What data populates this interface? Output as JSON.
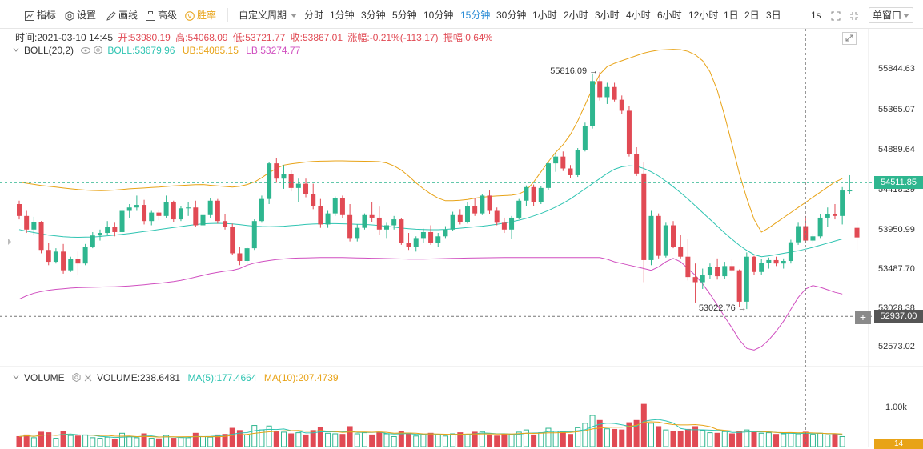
{
  "toolbar": {
    "left_tools": [
      {
        "label": "指标",
        "icon": "indicator-icon"
      },
      {
        "label": "设置",
        "icon": "settings-icon"
      },
      {
        "label": "画线",
        "icon": "draw-line-icon"
      },
      {
        "label": "高级",
        "icon": "advanced-icon"
      },
      {
        "label": "胜率",
        "icon": "win-rate-icon"
      }
    ],
    "custom_period_label": "自定义周期",
    "intervals": [
      "分时",
      "1分钟",
      "3分钟",
      "5分钟",
      "10分钟",
      "15分钟",
      "30分钟",
      "1小时",
      "2小时",
      "3小时",
      "4小时",
      "6小时",
      "12小时",
      "1日",
      "2日",
      "3日"
    ],
    "active_interval": "15分钟",
    "refresh_label": "1s",
    "window_mode": "单窗口",
    "vip_color": "#e8a317",
    "active_color": "#2b8cd6"
  },
  "ohlc_info": {
    "time": "时间:2021-03-10 14:45",
    "open": "开:53980.19",
    "high": "高:54068.09",
    "low": "低:53721.77",
    "close": "收:53867.01",
    "change": "涨幅:-0.21%(-113.17)",
    "amplitude": "振幅:0.64%"
  },
  "boll_legend": {
    "name": "BOLL(20,2)",
    "boll": "BOLL:53679.96",
    "ub": "UB:54085.15",
    "lb": "LB:53274.77",
    "boll_color": "#2fc4b2",
    "ub_color": "#e8a317",
    "lb_color": "#d04fc0"
  },
  "price_axis": {
    "ticks": [
      55844.63,
      55365.07,
      54889.64,
      54418.29,
      53950.99,
      53487.7,
      53028.38,
      52573.02
    ],
    "tick_labels": [
      "55844.63",
      "55365.07",
      "54889.64",
      "54418.29",
      "53950.99",
      "53487.70",
      "53028.38",
      "52573.02"
    ],
    "current_price": "54511.85",
    "crosshair_price": "52937.00",
    "current_price_color": "#2eb68f",
    "crosshair_color": "#555555"
  },
  "annotations": {
    "high": "55816.09",
    "low": "53022.76"
  },
  "volume_legend": {
    "name": "VOLUME",
    "volume": "VOLUME:238.6481",
    "ma5": "MA(5):177.4664",
    "ma10": "MA(10):207.4739",
    "ma5_color": "#2fc4b2",
    "ma10_color": "#e8a317"
  },
  "volume_axis": {
    "tick": "1.00k",
    "tag": "14"
  },
  "colors": {
    "up": "#2eb68f",
    "down": "#e14a54"
  },
  "chart_data": {
    "type": "candlestick",
    "interval": "15分钟",
    "last_bar": {
      "time": "2021-03-10 14:45",
      "open": 53980.19,
      "high": 54068.09,
      "low": 53721.77,
      "close": 53867.01
    },
    "candles": [
      [
        54260,
        54300,
        54080,
        54120
      ],
      [
        54120,
        54180,
        53920,
        53960
      ],
      [
        53960,
        54110,
        53900,
        54050
      ],
      [
        54050,
        54060,
        53680,
        53720
      ],
      [
        53720,
        53800,
        53540,
        53580
      ],
      [
        53580,
        53740,
        53560,
        53700
      ],
      [
        53700,
        53790,
        53440,
        53480
      ],
      [
        53480,
        53640,
        53460,
        53610
      ],
      [
        53610,
        53700,
        53420,
        53560
      ],
      [
        53560,
        53790,
        53540,
        53760
      ],
      [
        53760,
        53930,
        53740,
        53890
      ],
      [
        53890,
        53960,
        53830,
        53920
      ],
      [
        53920,
        54060,
        53900,
        53990
      ],
      [
        53990,
        54040,
        53880,
        53930
      ],
      [
        53930,
        54210,
        53900,
        54180
      ],
      [
        54180,
        54260,
        54100,
        54220
      ],
      [
        54220,
        54360,
        54180,
        54250
      ],
      [
        54250,
        54310,
        54020,
        54060
      ],
      [
        54060,
        54180,
        54010,
        54160
      ],
      [
        54160,
        54190,
        54070,
        54120
      ],
      [
        54120,
        54360,
        54100,
        54280
      ],
      [
        54280,
        54300,
        54050,
        54080
      ],
      [
        54080,
        54240,
        54060,
        54210
      ],
      [
        54210,
        54280,
        54120,
        54220
      ],
      [
        54220,
        54300,
        53990,
        54010
      ],
      [
        54010,
        54150,
        53960,
        54130
      ],
      [
        54130,
        54330,
        54090,
        54300
      ],
      [
        54300,
        54320,
        54030,
        54060
      ],
      [
        54060,
        54140,
        53960,
        53990
      ],
      [
        53990,
        54030,
        53660,
        53680
      ],
      [
        53680,
        53760,
        53540,
        53590
      ],
      [
        53590,
        53760,
        53560,
        53740
      ],
      [
        53740,
        54080,
        53720,
        54060
      ],
      [
        54060,
        54360,
        54040,
        54320
      ],
      [
        54320,
        54760,
        54260,
        54740
      ],
      [
        54740,
        54800,
        54510,
        54560
      ],
      [
        54560,
        54720,
        54440,
        54610
      ],
      [
        54610,
        54660,
        54410,
        54450
      ],
      [
        54450,
        54560,
        54280,
        54500
      ],
      [
        54500,
        54560,
        54340,
        54380
      ],
      [
        54380,
        54500,
        54200,
        54240
      ],
      [
        54240,
        54320,
        53980,
        54020
      ],
      [
        54020,
        54180,
        53980,
        54150
      ],
      [
        54150,
        54350,
        54120,
        54330
      ],
      [
        54330,
        54360,
        54090,
        54130
      ],
      [
        54130,
        54260,
        53820,
        53860
      ],
      [
        53860,
        54020,
        53820,
        53980
      ],
      [
        53980,
        54150,
        53960,
        54130
      ],
      [
        54130,
        54280,
        54050,
        54100
      ],
      [
        54100,
        54230,
        53900,
        53960
      ],
      [
        53960,
        54040,
        53860,
        54010
      ],
      [
        54010,
        54120,
        53960,
        54080
      ],
      [
        54080,
        54090,
        53780,
        53800
      ],
      [
        53800,
        53920,
        53720,
        53760
      ],
      [
        53760,
        53880,
        53700,
        53860
      ],
      [
        53860,
        53970,
        53800,
        53930
      ],
      [
        53930,
        54010,
        53780,
        53800
      ],
      [
        53800,
        53920,
        53760,
        53880
      ],
      [
        53880,
        54000,
        53860,
        53960
      ],
      [
        53960,
        54170,
        53940,
        54130
      ],
      [
        54130,
        54200,
        54020,
        54050
      ],
      [
        54050,
        54280,
        54030,
        54240
      ],
      [
        54240,
        54330,
        54120,
        54150
      ],
      [
        54150,
        54380,
        54130,
        54360
      ],
      [
        54360,
        54420,
        54140,
        54180
      ],
      [
        54180,
        54220,
        54010,
        54040
      ],
      [
        54040,
        54100,
        53920,
        53960
      ],
      [
        53960,
        54120,
        53850,
        54100
      ],
      [
        54100,
        54320,
        54080,
        54300
      ],
      [
        54300,
        54480,
        54240,
        54460
      ],
      [
        54460,
        54490,
        54240,
        54280
      ],
      [
        54280,
        54470,
        54260,
        54450
      ],
      [
        54450,
        54760,
        54430,
        54740
      ],
      [
        54740,
        54860,
        54640,
        54820
      ],
      [
        54820,
        54880,
        54650,
        54680
      ],
      [
        54680,
        54720,
        54570,
        54600
      ],
      [
        54600,
        54920,
        54580,
        54900
      ],
      [
        54900,
        55220,
        54880,
        55180
      ],
      [
        55180,
        55800,
        55150,
        55710
      ],
      [
        55710,
        55816,
        55480,
        55520
      ],
      [
        55520,
        55690,
        55440,
        55640
      ],
      [
        55640,
        55690,
        55470,
        55490
      ],
      [
        55490,
        55540,
        55320,
        55360
      ],
      [
        55360,
        55420,
        54820,
        54850
      ],
      [
        54850,
        54930,
        54590,
        54620
      ],
      [
        54620,
        54760,
        53340,
        53600
      ],
      [
        53600,
        54180,
        53540,
        54120
      ],
      [
        54120,
        54150,
        53620,
        53650
      ],
      [
        53650,
        54040,
        53630,
        54010
      ],
      [
        54010,
        54060,
        53740,
        53760
      ],
      [
        53760,
        53900,
        53620,
        53640
      ],
      [
        53640,
        53850,
        53360,
        53400
      ],
      [
        53400,
        53560,
        53100,
        53340
      ],
      [
        53340,
        53500,
        53260,
        53420
      ],
      [
        53420,
        53560,
        53380,
        53520
      ],
      [
        53520,
        53620,
        53370,
        53410
      ],
      [
        53410,
        53580,
        53380,
        53530
      ],
      [
        53530,
        53610,
        53460,
        53480
      ],
      [
        53480,
        53490,
        53050,
        53110
      ],
      [
        53110,
        53690,
        53022.76,
        53640
      ],
      [
        53640,
        53650,
        53420,
        53460
      ],
      [
        53460,
        53610,
        53430,
        53570
      ],
      [
        53570,
        53630,
        53500,
        53600
      ],
      [
        53600,
        53640,
        53530,
        53560
      ],
      [
        53560,
        53620,
        53500,
        53590
      ],
      [
        53590,
        53840,
        53560,
        53810
      ],
      [
        53810,
        54040,
        53780,
        54000
      ],
      [
        54000,
        54120,
        53800,
        53830
      ],
      [
        53830,
        53910,
        53800,
        53880
      ],
      [
        53880,
        54140,
        53860,
        54100
      ],
      [
        54100,
        54220,
        53990,
        54140
      ],
      [
        54140,
        54260,
        54080,
        54120
      ],
      [
        54120,
        54460,
        54020,
        54420
      ],
      [
        54420,
        54600,
        54380,
        54420
      ],
      [
        53980.19,
        54068.09,
        53721.77,
        53867.01
      ]
    ],
    "boll_upper": [
      54520,
      54505,
      54492,
      54480,
      54470,
      54460,
      54450,
      54440,
      54432,
      54425,
      54420,
      54418,
      54420,
      54425,
      54432,
      54440,
      54445,
      54450,
      54455,
      54460,
      54468,
      54475,
      54480,
      54485,
      54488,
      54490,
      54482,
      54475,
      54468,
      54460,
      54470,
      54490,
      54520,
      54570,
      54630,
      54680,
      54720,
      54735,
      54745,
      54755,
      54762,
      54766,
      54768,
      54770,
      54770,
      54768,
      54766,
      54765,
      54764,
      54760,
      54745,
      54710,
      54660,
      54590,
      54510,
      54440,
      54380,
      54330,
      54300,
      54300,
      54305,
      54315,
      54330,
      54340,
      54350,
      54355,
      54360,
      54365,
      54380,
      54420,
      54520,
      54640,
      54760,
      54870,
      54960,
      55080,
      55240,
      55430,
      55620,
      55790,
      55880,
      55920,
      55950,
      55980,
      56010,
      56040,
      56060,
      56075,
      56080,
      56085,
      56080,
      56060,
      56020,
      55950,
      55820,
      55600,
      55300,
      54960,
      54620,
      54330,
      54080,
      53930,
      53980,
      54040,
      54100,
      54160,
      54220,
      54280,
      54340,
      54400,
      54460,
      54520,
      54560
    ],
    "boll_mid": [
      53960,
      53940,
      53925,
      53910,
      53895,
      53885,
      53875,
      53870,
      53868,
      53870,
      53872,
      53878,
      53886,
      53894,
      53904,
      53914,
      53925,
      53936,
      53948,
      53960,
      53972,
      53984,
      53996,
      54008,
      54018,
      54028,
      54032,
      54034,
      54032,
      54026,
      54018,
      54008,
      54000,
      53996,
      53994,
      53996,
      54000,
      54006,
      54012,
      54020,
      54025,
      54028,
      54030,
      54030,
      54028,
      54025,
      54022,
      54020,
      54015,
      54008,
      53998,
      53988,
      53978,
      53970,
      53964,
      53960,
      53958,
      53958,
      53962,
      53968,
      53976,
      53984,
      53992,
      54000,
      54010,
      54022,
      54036,
      54052,
      54070,
      54092,
      54120,
      54150,
      54185,
      54225,
      54270,
      54320,
      54380,
      54440,
      54500,
      54560,
      54620,
      54670,
      54700,
      54712,
      54705,
      54680,
      54640,
      54590,
      54530,
      54465,
      54395,
      54320,
      54240,
      54160,
      54080,
      54000,
      53920,
      53845,
      53775,
      53715,
      53665,
      53640,
      53650,
      53665,
      53680,
      53695,
      53710,
      53730,
      53750,
      53775,
      53800,
      53825,
      53850
    ],
    "boll_lower": [
      53140,
      53180,
      53210,
      53230,
      53245,
      53255,
      53262,
      53270,
      53275,
      53278,
      53280,
      53282,
      53284,
      53286,
      53290,
      53296,
      53302,
      53310,
      53318,
      53326,
      53336,
      53348,
      53362,
      53380,
      53400,
      53420,
      53440,
      53455,
      53470,
      53480,
      53500,
      53540,
      53565,
      53582,
      53595,
      53606,
      53614,
      53620,
      53624,
      53626,
      53628,
      53630,
      53631,
      53631,
      53630,
      53628,
      53626,
      53624,
      53622,
      53620,
      53618,
      53616,
      53614,
      53612,
      53612,
      53612,
      53614,
      53616,
      53618,
      53620,
      53622,
      53624,
      53626,
      53627,
      53628,
      53629,
      53630,
      53630,
      53630,
      53630,
      53630,
      53630,
      53630,
      53630,
      53630,
      53630,
      53630,
      53630,
      53630,
      53630,
      53610,
      53580,
      53560,
      53540,
      53520,
      53500,
      53480,
      53520,
      53580,
      53620,
      53580,
      53500,
      53420,
      53320,
      53200,
      53070,
      52930,
      52800,
      52660,
      52560,
      52540,
      52580,
      52660,
      52760,
      52880,
      53020,
      53160,
      53260,
      53300,
      53280,
      53250,
      53220,
      53200
    ],
    "volume": [
      180,
      210,
      160,
      260,
      250,
      150,
      270,
      200,
      190,
      210,
      160,
      150,
      170,
      130,
      240,
      180,
      160,
      230,
      150,
      140,
      200,
      150,
      170,
      160,
      240,
      180,
      170,
      210,
      220,
      330,
      290,
      210,
      380,
      300,
      370,
      280,
      260,
      230,
      250,
      210,
      290,
      350,
      240,
      230,
      220,
      360,
      230,
      250,
      210,
      260,
      230,
      180,
      270,
      240,
      190,
      220,
      240,
      210,
      190,
      230,
      250,
      220,
      260,
      270,
      210,
      190,
      230,
      220,
      260,
      300,
      210,
      250,
      330,
      280,
      260,
      220,
      340,
      420,
      560,
      470,
      320,
      310,
      300,
      430,
      470,
      760,
      420,
      360,
      300,
      280,
      270,
      310,
      360,
      290,
      250,
      240,
      270,
      230,
      280,
      300,
      260,
      240,
      250,
      220,
      230,
      250,
      230,
      260,
      220,
      240,
      210,
      230,
      180
    ],
    "price_range": [
      52420,
      56100
    ],
    "volume_range": [
      0,
      1150
    ]
  }
}
